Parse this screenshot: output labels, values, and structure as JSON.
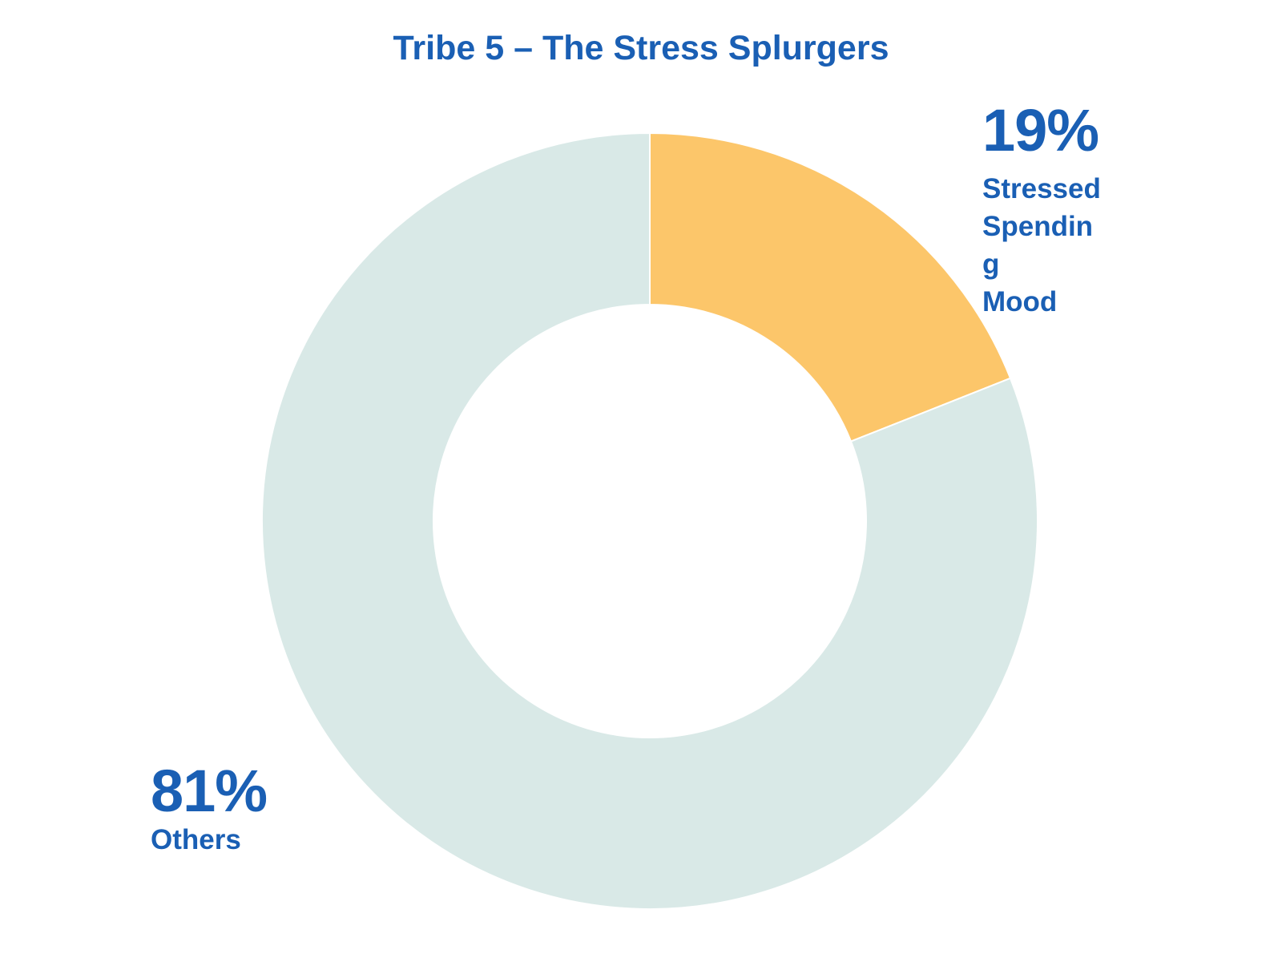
{
  "chart_data": {
    "type": "pie",
    "title": "Tribe 5 – The Stress Splurgers",
    "donut": true,
    "slices": [
      {
        "label": "Stressed\nSpendin\ng\nMood",
        "value": 19,
        "value_label": "19%",
        "color": "#fcc66a"
      },
      {
        "label": "Others",
        "value": 81,
        "value_label": "81%",
        "color": "#d9e9e7"
      }
    ]
  }
}
